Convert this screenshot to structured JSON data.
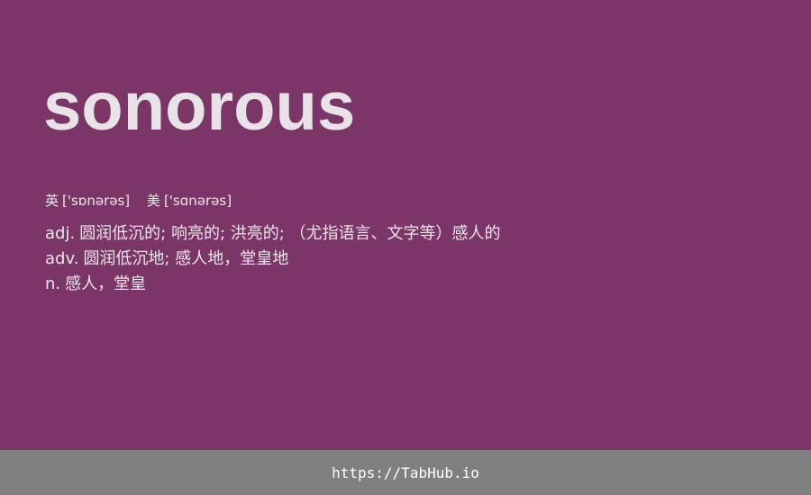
{
  "word": "sonorous",
  "phonetics": [
    {
      "label": "英",
      "ipa": "['sɒnərəs]"
    },
    {
      "label": "美",
      "ipa": "['sɑnərəs]"
    }
  ],
  "definitions": [
    {
      "pos": "adj.",
      "text": "圆润低沉的; 响亮的; 洪亮的; （尤指语言、文字等）感人的"
    },
    {
      "pos": "adv.",
      "text": "圆润低沉地; 感人地，堂皇地"
    },
    {
      "pos": "n.",
      "text": "感人，堂皇"
    }
  ],
  "footer": {
    "link": "https://TabHub.io"
  },
  "colors": {
    "background": "#7b3566",
    "footer": "#808080",
    "text": "#ece6ea"
  }
}
